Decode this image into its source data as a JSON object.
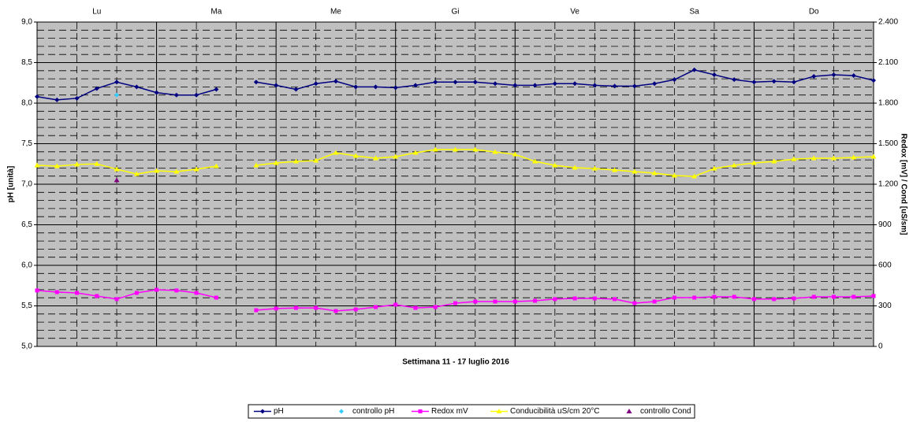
{
  "chart_data": {
    "type": "line",
    "days": [
      "Lu",
      "Ma",
      "Me",
      "Gi",
      "Ve",
      "Sa",
      "Do"
    ],
    "xlabel": "Settimana   11 - 17 luglio  2016",
    "ylabel": "pH [unità]",
    "y2label": "Redox [mV] / Cond [uS/sm]",
    "ylim": [
      5,
      9
    ],
    "yticks": [
      {
        "value": 5,
        "label": "5,0"
      },
      {
        "value": 5.5,
        "label": "5,5"
      },
      {
        "value": 6,
        "label": "6,0"
      },
      {
        "value": 6.5,
        "label": "6,5"
      },
      {
        "value": 7,
        "label": "7,0"
      },
      {
        "value": 7.5,
        "label": "7,5"
      },
      {
        "value": 8,
        "label": "8,0"
      },
      {
        "value": 8.5,
        "label": "8,5"
      },
      {
        "value": 9,
        "label": "9,0"
      }
    ],
    "y2lim": [
      0,
      2400
    ],
    "y2ticks": [
      0,
      300,
      600,
      900,
      {
        "value": 1200,
        "label": "1.200"
      },
      {
        "value": 1500,
        "label": "1.500"
      },
      {
        "value": 1800,
        "label": "1.800"
      },
      {
        "value": 2100,
        "label": "2.100"
      },
      {
        "value": 2400,
        "label": "2.400"
      }
    ],
    "grid": true,
    "background": "#c0c0c0",
    "series": [
      {
        "name": "pH",
        "color": "#000080",
        "marker": "diamond",
        "line": true,
        "values": [
          8.08,
          8.04,
          8.06,
          8.18,
          8.26,
          8.2,
          8.13,
          8.1,
          8.1,
          8.17,
          null,
          8.26,
          8.22,
          8.17,
          8.24,
          8.27,
          8.2,
          8.2,
          8.19,
          8.22,
          8.26,
          8.26,
          8.26,
          8.24,
          8.22,
          8.22,
          8.24,
          8.24,
          8.22,
          8.21,
          8.21,
          8.24,
          8.29,
          8.41,
          8.35,
          8.29,
          8.26,
          8.27,
          8.26,
          8.33,
          8.35,
          8.34,
          8.28
        ]
      },
      {
        "name": "controllo pH",
        "color": "#33ccff",
        "marker": "diamond",
        "line": false,
        "values": [
          null,
          null,
          null,
          null,
          8.1,
          null,
          null,
          null,
          null,
          null,
          null,
          null,
          null,
          null,
          null,
          null,
          null,
          null,
          null,
          null,
          null,
          null,
          null,
          null,
          null,
          null,
          null,
          null,
          null,
          null,
          null,
          null,
          null,
          null,
          null,
          null,
          null,
          null,
          null,
          null,
          null,
          null,
          null
        ]
      },
      {
        "name": "Redox mV",
        "color": "#ff00ff",
        "marker": "square",
        "line": true,
        "axis": "y2",
        "values": [
          414,
          402,
          396,
          373,
          350,
          396,
          419,
          414,
          396,
          361,
          null,
          268,
          280,
          285,
          285,
          262,
          274,
          291,
          309,
          285,
          291,
          320,
          332,
          332,
          332,
          338,
          350,
          355,
          355,
          350,
          320,
          332,
          361,
          361,
          367,
          367,
          350,
          350,
          355,
          367,
          367,
          367,
          373
        ]
      },
      {
        "name": "Conducibilità uS/cm 20°C",
        "color": "#ffff00",
        "marker": "triangle",
        "line": true,
        "axis": "y2",
        "values": [
          1340,
          1334,
          1346,
          1351,
          1311,
          1276,
          1299,
          1293,
          1311,
          1334,
          null,
          1340,
          1357,
          1369,
          1375,
          1433,
          1410,
          1392,
          1404,
          1433,
          1456,
          1456,
          1456,
          1439,
          1421,
          1369,
          1340,
          1322,
          1316,
          1305,
          1293,
          1282,
          1264,
          1258,
          1316,
          1340,
          1357,
          1369,
          1386,
          1392,
          1392,
          1398,
          1404
        ]
      },
      {
        "name": "controllo Cond",
        "color": "#800080",
        "marker": "triangle",
        "line": false,
        "axis": "y2",
        "values": [
          null,
          null,
          null,
          null,
          1230,
          null,
          null,
          null,
          null,
          null,
          null,
          null,
          null,
          null,
          null,
          null,
          null,
          null,
          null,
          null,
          null,
          null,
          null,
          null,
          null,
          null,
          null,
          null,
          null,
          null,
          null,
          null,
          null,
          null,
          null,
          null,
          null,
          null,
          null,
          null,
          null,
          null,
          null
        ]
      }
    ]
  }
}
